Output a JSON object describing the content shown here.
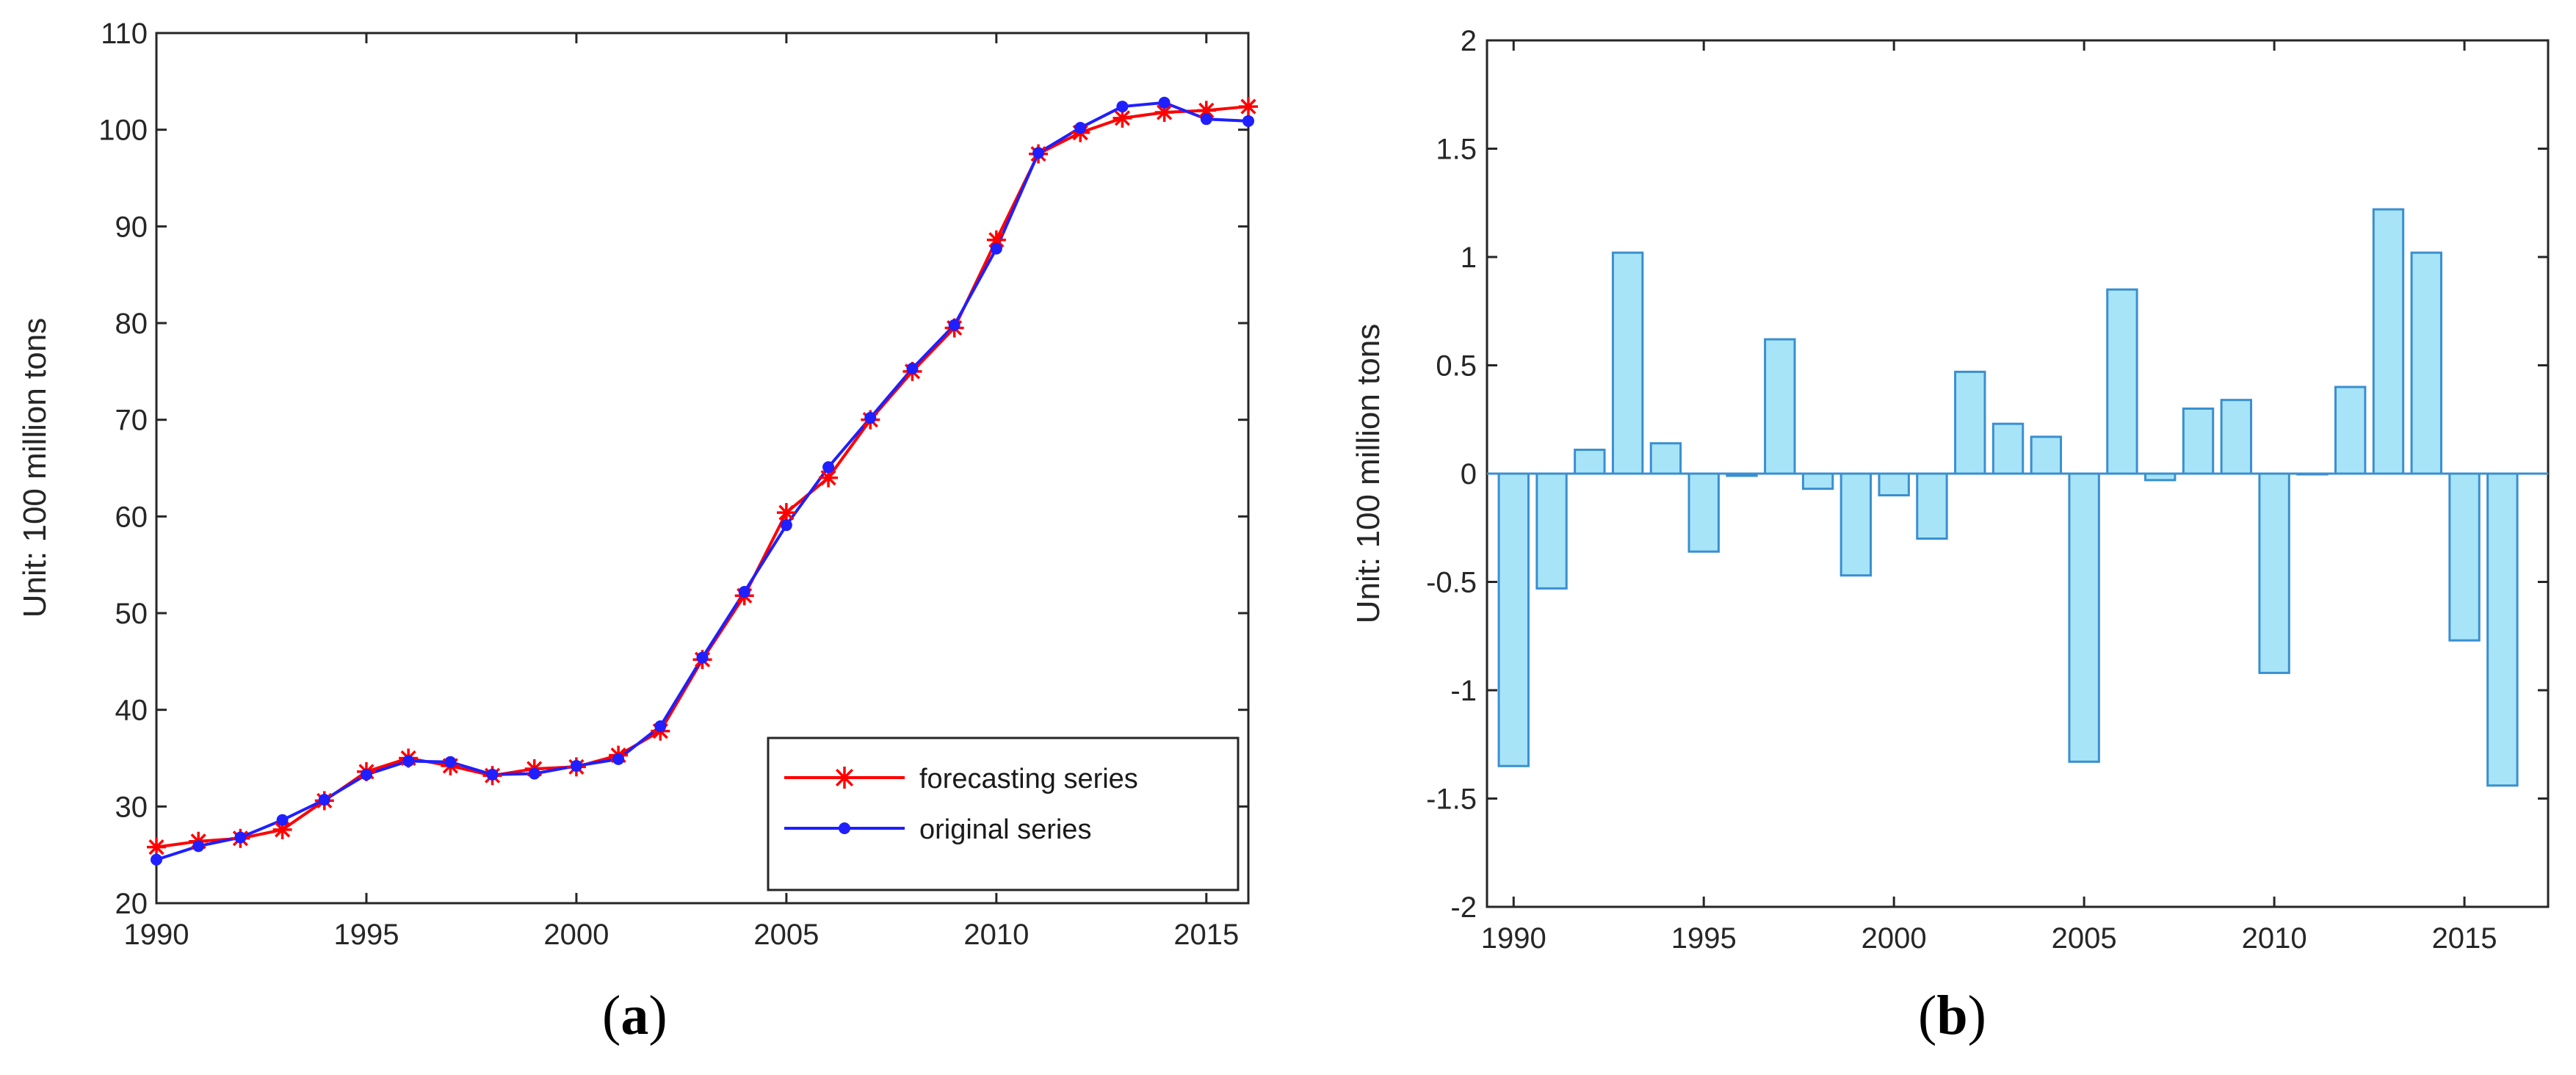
{
  "chart_data": [
    {
      "type": "line",
      "panel_label": "a",
      "ylabel": "Unit: 100 million tons",
      "xlim": [
        1990,
        2016
      ],
      "ylim": [
        20,
        110
      ],
      "xticks": [
        1990,
        1995,
        2000,
        2005,
        2010,
        2015
      ],
      "yticks": [
        20,
        30,
        40,
        50,
        60,
        70,
        80,
        90,
        100,
        110
      ],
      "x": [
        1990,
        1991,
        1992,
        1993,
        1994,
        1995,
        1996,
        1997,
        1998,
        1999,
        2000,
        2001,
        2002,
        2003,
        2004,
        2005,
        2006,
        2007,
        2008,
        2009,
        2010,
        2011,
        2012,
        2013,
        2014,
        2015,
        2016
      ],
      "series": [
        {
          "name": "forecasting series",
          "color": "#ff0000",
          "marker": "asterisk",
          "values": [
            25.8,
            26.4,
            26.7,
            27.6,
            30.6,
            33.6,
            35.0,
            34.2,
            33.2,
            33.9,
            34.1,
            35.3,
            37.8,
            45.2,
            51.8,
            60.4,
            64.0,
            70.0,
            75.0,
            79.5,
            88.6,
            97.5,
            99.7,
            101.2,
            101.8,
            102.0,
            102.4
          ]
        },
        {
          "name": "original series",
          "color": "#1f1fff",
          "marker": "dot",
          "values": [
            24.5,
            25.9,
            26.8,
            28.6,
            30.7,
            33.3,
            34.7,
            34.6,
            33.3,
            33.4,
            34.2,
            34.9,
            38.3,
            45.4,
            52.2,
            59.1,
            65.1,
            70.2,
            75.3,
            79.8,
            87.7,
            97.6,
            100.2,
            102.4,
            102.8,
            101.1,
            100.9
          ]
        }
      ],
      "legend": {
        "position": "bottom-right"
      }
    },
    {
      "type": "bar",
      "panel_label": "b",
      "ylabel": "Unit: 100 million tons",
      "xlim": [
        1989.3,
        2017.2
      ],
      "ylim": [
        -2,
        2
      ],
      "xticks": [
        1990,
        1995,
        2000,
        2005,
        2010,
        2015
      ],
      "yticks": [
        -2,
        -1.5,
        -1,
        -0.5,
        0,
        0.5,
        1,
        1.5,
        2
      ],
      "ytick_labels": [
        "-2",
        "-1.5",
        "-1",
        "-0.5",
        "0",
        "0.5",
        "1",
        "1.5",
        "2"
      ],
      "bar_color": "#a8e4f8",
      "edge_color": "#3a8fd0",
      "x": [
        1990,
        1991,
        1992,
        1993,
        1994,
        1995,
        1996,
        1997,
        1998,
        1999,
        2000,
        2001,
        2002,
        2003,
        2004,
        2005,
        2006,
        2007,
        2008,
        2009,
        2010,
        2011,
        2012,
        2013,
        2014,
        2015,
        2016
      ],
      "values": [
        -1.35,
        -0.53,
        0.11,
        1.02,
        0.14,
        -0.36,
        -0.01,
        0.62,
        -0.07,
        -0.47,
        -0.1,
        -0.3,
        0.47,
        0.23,
        0.17,
        -1.33,
        0.85,
        -0.03,
        0.3,
        0.34,
        -0.92,
        0.0,
        0.4,
        1.22,
        1.02,
        -0.77,
        -1.44
      ]
    }
  ]
}
